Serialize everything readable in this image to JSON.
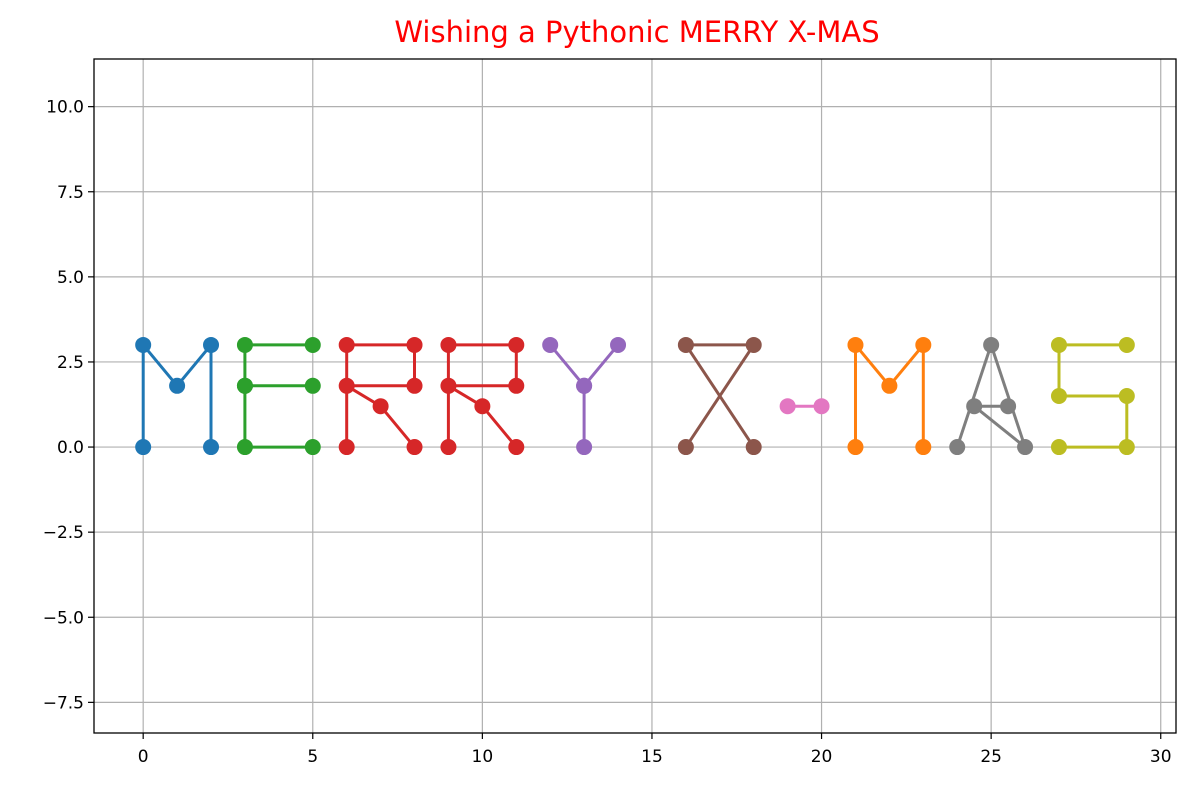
{
  "chart_data": {
    "type": "line",
    "title": "Wishing a Pythonic MERRY X-MAS",
    "title_color": "#ff0000",
    "xlabel": "",
    "ylabel": "",
    "xlim": [
      -1.45,
      30.45
    ],
    "ylim": [
      -8.4,
      11.4
    ],
    "grid": true,
    "x_ticks": [
      0,
      5,
      10,
      15,
      20,
      25,
      30
    ],
    "x_tick_labels": [
      "0",
      "5",
      "10",
      "15",
      "20",
      "25",
      "30"
    ],
    "y_ticks": [
      10.0,
      7.5,
      5.0,
      2.5,
      0.0,
      -2.5,
      -5.0,
      -7.5
    ],
    "y_tick_labels": [
      "10.0",
      "7.5",
      "5.0",
      "2.5",
      "0.0",
      "−2.5",
      "−5.0",
      "−7.5"
    ],
    "series": [
      {
        "color": "#1f77b4",
        "x": [
          0,
          0,
          1,
          2,
          2
        ],
        "y": [
          0,
          3,
          1.8,
          3,
          0
        ]
      },
      {
        "color": "#2ca02c",
        "x": [
          5,
          3,
          3,
          5,
          3,
          3,
          5
        ],
        "y": [
          3,
          3,
          1.8,
          1.8,
          1.8,
          0,
          0
        ]
      },
      {
        "color": "#d62728",
        "x": [
          6,
          6,
          8,
          8,
          6,
          7,
          8
        ],
        "y": [
          0,
          3,
          3,
          1.8,
          1.8,
          1.2,
          0
        ]
      },
      {
        "color": "#d62728",
        "x": [
          9,
          9,
          11,
          11,
          9,
          10,
          11
        ],
        "y": [
          0,
          3,
          3,
          1.8,
          1.8,
          1.2,
          0
        ]
      },
      {
        "color": "#9467bd",
        "x": [
          12,
          13,
          14,
          13,
          13
        ],
        "y": [
          3,
          1.8,
          3,
          1.8,
          0
        ]
      },
      {
        "color": "#8c564b",
        "x": [
          16,
          18,
          16,
          18
        ],
        "y": [
          0,
          3,
          3,
          0
        ]
      },
      {
        "color": "#e377c2",
        "x": [
          19,
          20
        ],
        "y": [
          1.2,
          1.2
        ]
      },
      {
        "color": "#ff7f0e",
        "x": [
          21,
          21,
          22,
          23,
          23
        ],
        "y": [
          0,
          3,
          1.8,
          3,
          0
        ]
      },
      {
        "color": "#7f7f7f",
        "x": [
          24,
          25,
          26,
          24.5,
          25.5
        ],
        "y": [
          0,
          3,
          0,
          1.2,
          1.2
        ]
      },
      {
        "color": "#bcbd22",
        "x": [
          29,
          27,
          27,
          29,
          29,
          27
        ],
        "y": [
          3,
          3,
          1.5,
          1.5,
          0,
          0
        ]
      }
    ]
  }
}
